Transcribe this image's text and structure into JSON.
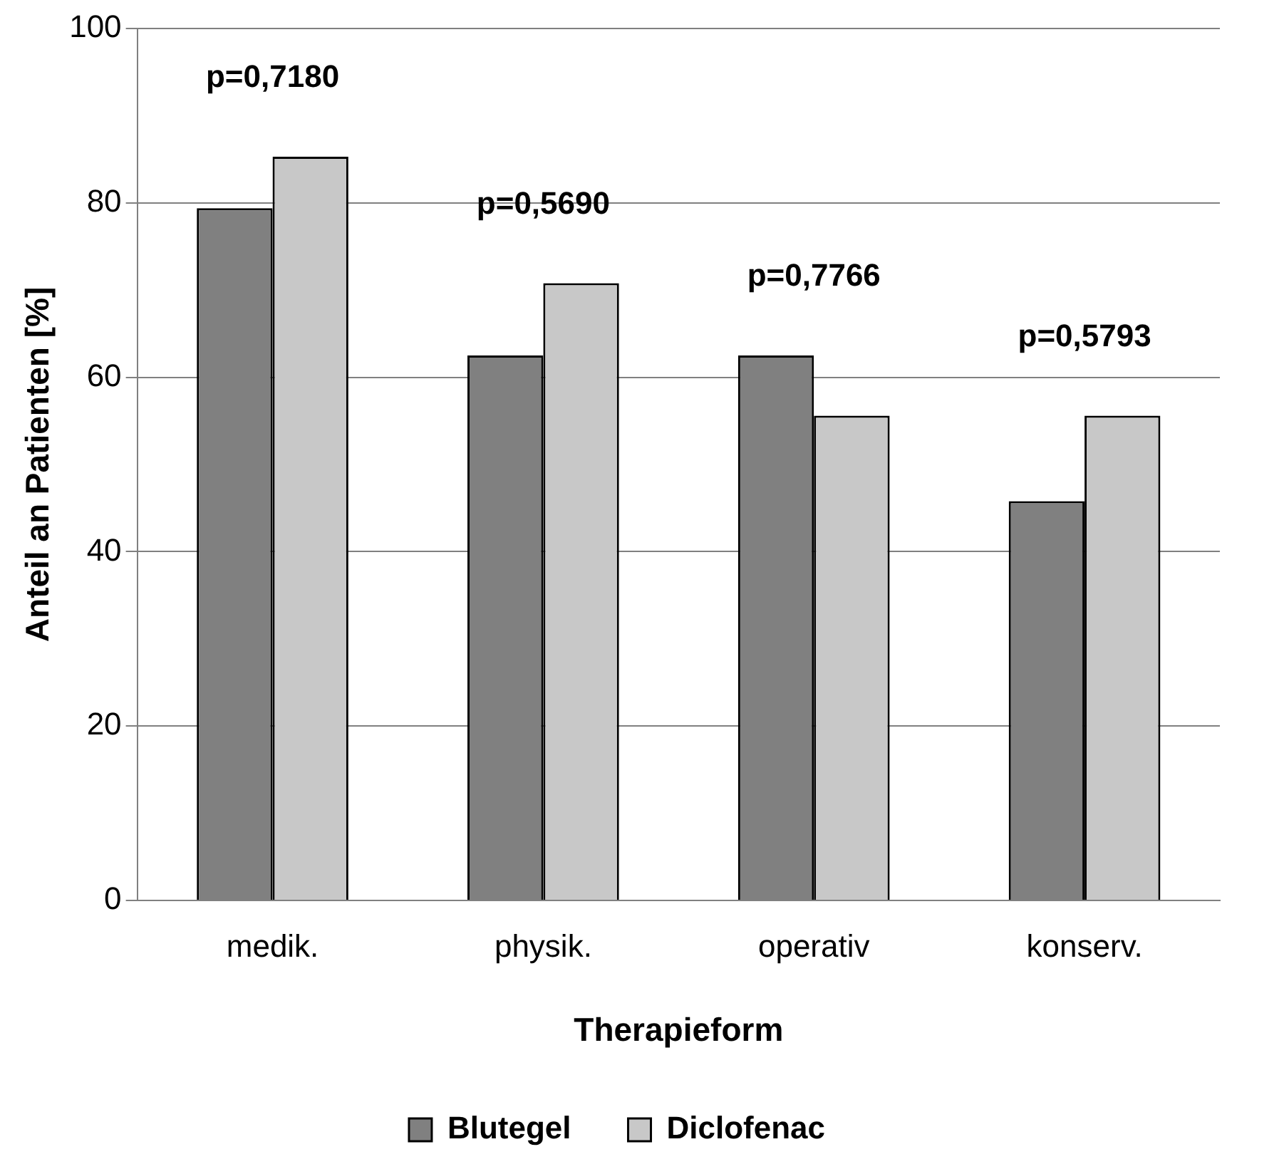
{
  "chart_data": {
    "type": "bar",
    "xlabel": "Therapieform",
    "ylabel": "Anteil an Patienten [%]",
    "categories": [
      "medik.",
      "physik.",
      "operativ",
      "konserv."
    ],
    "series": [
      {
        "name": "Blutegel",
        "color": "#808080",
        "values": [
          79.4,
          62.5,
          62.5,
          45.8
        ]
      },
      {
        "name": "Diclofenac",
        "color": "#c8c8c8",
        "values": [
          85.3,
          70.8,
          55.6,
          55.6
        ]
      }
    ],
    "ylim": [
      0,
      100
    ],
    "yticks": [
      0,
      20,
      40,
      60,
      80,
      100
    ],
    "grid": "y",
    "legend": "bottom",
    "annotations": [
      "p=0,7180",
      "p=0,5690",
      "p=0,7766",
      "p=0,5793"
    ]
  }
}
